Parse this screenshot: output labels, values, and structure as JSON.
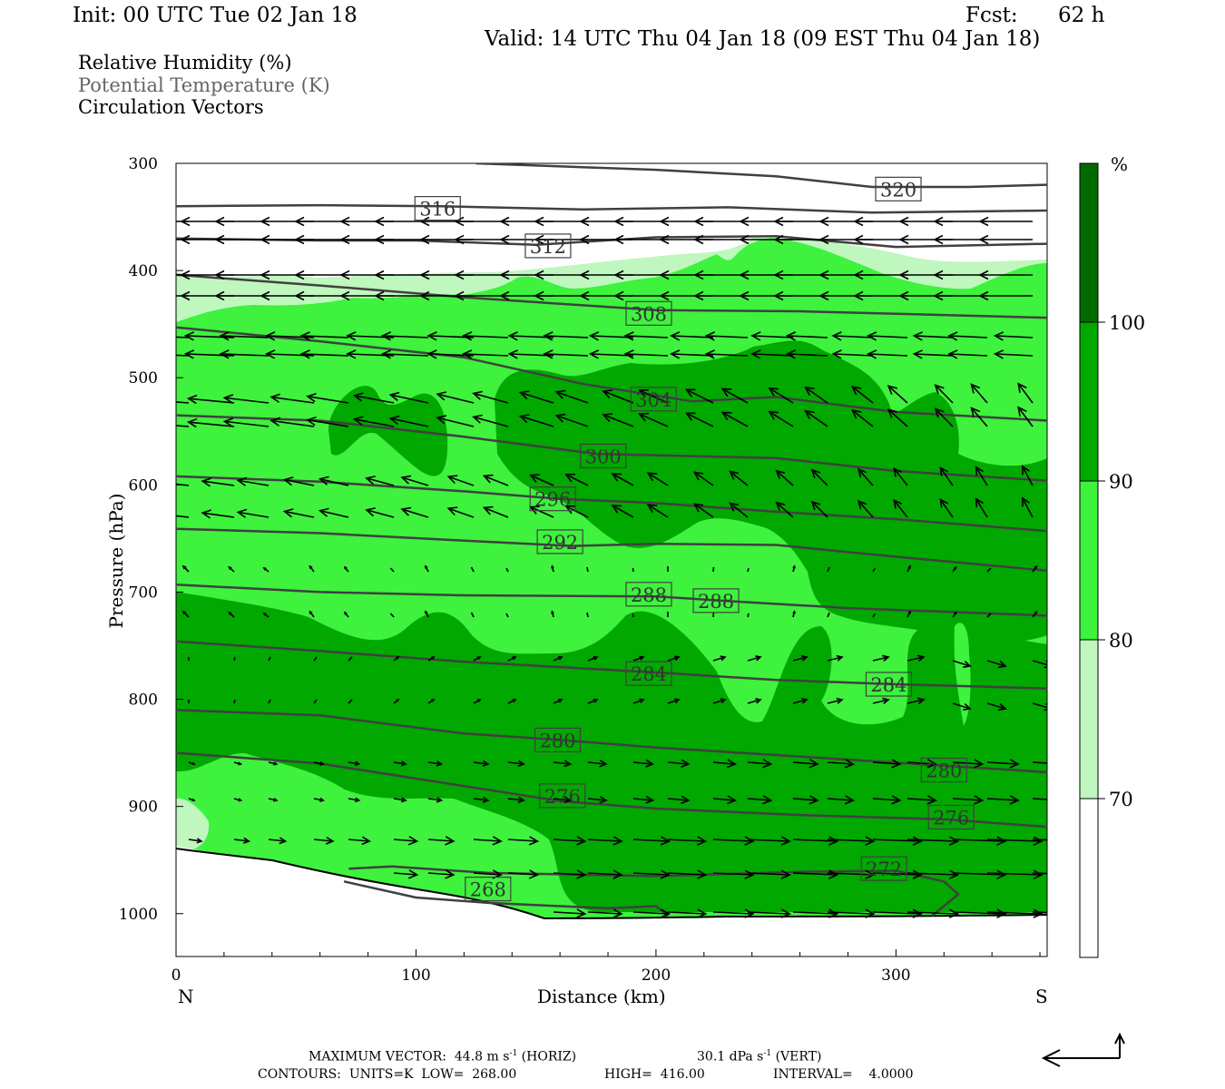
{
  "header": {
    "init": "Init: 00 UTC Tue 02 Jan 18",
    "fcst_label": "Fcst:",
    "fcst_value": "62 h",
    "valid": "Valid: 14 UTC Thu 04 Jan 18 (09 EST Thu 04 Jan 18)"
  },
  "legend": {
    "rh": "Relative Humidity (%)",
    "theta": "Potential Temperature (K)",
    "vectors": "Circulation Vectors"
  },
  "colorbar": {
    "unit": "%",
    "ticks": [
      "100",
      "90",
      "80",
      "70"
    ],
    "colors": [
      "#006b00",
      "#00a800",
      "#3ef23e",
      "#bff7bf",
      "#ffffff"
    ]
  },
  "chart_data": {
    "type": "cross-section (filled contour + line contour + vectors)",
    "xlabel": "Distance (km)",
    "ylabel": "Pressure (hPa)",
    "x_ticks": [
      0,
      100,
      200,
      300
    ],
    "y_ticks": [
      300,
      400,
      500,
      600,
      700,
      800,
      900,
      1000
    ],
    "xlim": [
      0,
      363
    ],
    "ylim": [
      1040,
      300
    ],
    "x_end_labels": {
      "left": "N",
      "right": "S"
    },
    "theta_contours": [
      {
        "label": "320",
        "points": [
          [
            125,
            300
          ],
          [
            200,
            306
          ],
          [
            250,
            312
          ],
          [
            290,
            322
          ],
          [
            330,
            322
          ],
          [
            363,
            320
          ]
        ],
        "label_at": [
          301,
          324
        ]
      },
      {
        "label": "316",
        "points": [
          [
            0,
            340
          ],
          [
            60,
            339
          ],
          [
            110,
            340
          ],
          [
            170,
            343
          ],
          [
            230,
            341
          ],
          [
            290,
            346
          ],
          [
            363,
            344
          ]
        ],
        "label_at": [
          109,
          342
        ]
      },
      {
        "label": "312",
        "points": [
          [
            0,
            370
          ],
          [
            60,
            372
          ],
          [
            100,
            372
          ],
          [
            150,
            376
          ],
          [
            200,
            369
          ],
          [
            250,
            368
          ],
          [
            300,
            378
          ],
          [
            363,
            375
          ]
        ],
        "label_at": [
          155,
          377
        ]
      },
      {
        "label": "308",
        "points": [
          [
            0,
            404
          ],
          [
            60,
            414
          ],
          [
            120,
            425
          ],
          [
            200,
            437
          ],
          [
            260,
            438
          ],
          [
            363,
            444
          ]
        ],
        "label_at": [
          197,
          440
        ]
      },
      {
        "label": "304",
        "points": [
          [
            0,
            453
          ],
          [
            60,
            466
          ],
          [
            120,
            481
          ],
          [
            170,
            506
          ],
          [
            215,
            522
          ],
          [
            250,
            518
          ],
          [
            300,
            532
          ],
          [
            363,
            540
          ]
        ],
        "label_at": [
          199,
          520
        ]
      },
      {
        "label": "300",
        "points": [
          [
            0,
            535
          ],
          [
            60,
            540
          ],
          [
            120,
            555
          ],
          [
            175,
            571
          ],
          [
            250,
            575
          ],
          [
            300,
            587
          ],
          [
            363,
            596
          ]
        ],
        "label_at": [
          178,
          573
        ]
      },
      {
        "label": "296",
        "points": [
          [
            0,
            592
          ],
          [
            60,
            597
          ],
          [
            120,
            606
          ],
          [
            160,
            613
          ],
          [
            200,
            617
          ],
          [
            250,
            625
          ],
          [
            300,
            632
          ],
          [
            363,
            643
          ]
        ],
        "label_at": [
          157,
          613
        ]
      },
      {
        "label": "292",
        "points": [
          [
            0,
            641
          ],
          [
            60,
            645
          ],
          [
            120,
            652
          ],
          [
            165,
            657
          ],
          [
            200,
            655
          ],
          [
            250,
            656
          ],
          [
            300,
            667
          ],
          [
            363,
            680
          ]
        ],
        "label_at": [
          160,
          653
        ]
      },
      {
        "label": "288",
        "points": [
          [
            0,
            693
          ],
          [
            60,
            700
          ],
          [
            120,
            703
          ],
          [
            200,
            704
          ],
          [
            235,
            709
          ],
          [
            280,
            715
          ],
          [
            363,
            722
          ]
        ],
        "label_at": [
          197,
          702
        ]
      },
      {
        "label": "288",
        "points": [],
        "label_at": [
          225,
          708
        ]
      },
      {
        "label": "284",
        "points": [
          [
            0,
            746
          ],
          [
            60,
            755
          ],
          [
            120,
            765
          ],
          [
            200,
            775
          ],
          [
            250,
            782
          ],
          [
            300,
            786
          ],
          [
            363,
            790
          ]
        ],
        "label_at": [
          197,
          776
        ]
      },
      {
        "label": "284",
        "points": [],
        "label_at": [
          297,
          786
        ]
      },
      {
        "label": "280",
        "points": [
          [
            0,
            810
          ],
          [
            60,
            815
          ],
          [
            120,
            832
          ],
          [
            160,
            838
          ],
          [
            200,
            845
          ],
          [
            250,
            852
          ],
          [
            320,
            862
          ],
          [
            363,
            868
          ]
        ],
        "label_at": [
          159,
          838
        ]
      },
      {
        "label": "280",
        "points": [],
        "label_at": [
          320,
          866
        ]
      },
      {
        "label": "276",
        "points": [
          [
            0,
            850
          ],
          [
            60,
            860
          ],
          [
            120,
            881
          ],
          [
            160,
            895
          ],
          [
            200,
            902
          ],
          [
            260,
            908
          ],
          [
            320,
            912
          ],
          [
            363,
            919
          ]
        ],
        "label_at": [
          161,
          890
        ]
      },
      {
        "label": "276",
        "points": [],
        "label_at": [
          323,
          910
        ]
      },
      {
        "label": "272",
        "points": [
          [
            72,
            958
          ],
          [
            90,
            956
          ],
          [
            130,
            962
          ],
          [
            200,
            965
          ],
          [
            260,
            961
          ],
          [
            300,
            960
          ],
          [
            320,
            970
          ],
          [
            326,
            982
          ],
          [
            315,
            1002
          ]
        ],
        "label_at": [
          295,
          958
        ]
      },
      {
        "label": "268",
        "points": [
          [
            70,
            970
          ],
          [
            100,
            985
          ],
          [
            130,
            990
          ],
          [
            180,
            995
          ],
          [
            200,
            993
          ],
          [
            205,
            1002
          ]
        ],
        "label_at": [
          130,
          977
        ]
      }
    ],
    "humidity_bands_percent": [
      70,
      80,
      90,
      100
    ],
    "max_vector": {
      "label": "MAXIMUM VECTOR:",
      "horiz_value": "44.8",
      "horiz_units_pre": "m s",
      "horiz_units_exp": "-1",
      "horiz_tag": "(HORIZ)",
      "vert_value": "30.1",
      "vert_units_pre": "dPa s",
      "vert_units_exp": "-1",
      "vert_tag": "(VERT)"
    },
    "contour_info": {
      "label": "CONTOURS:",
      "units": "UNITS=K",
      "low_label": "LOW=",
      "low": "268.00",
      "high_label": "HIGH=",
      "high": "416.00",
      "interval_label": "INTERVAL=",
      "interval": "4.0000"
    }
  }
}
